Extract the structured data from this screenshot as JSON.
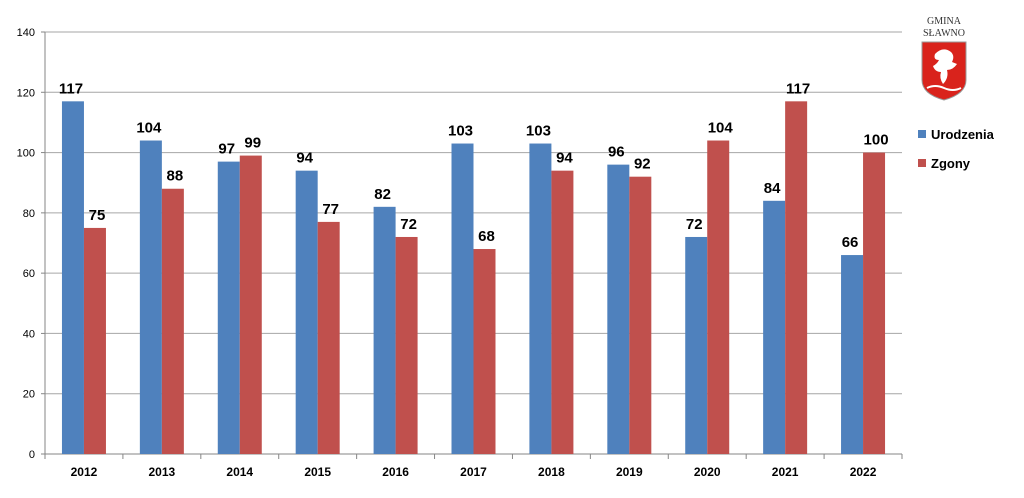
{
  "chart_data": {
    "type": "bar",
    "categories": [
      "2012",
      "2013",
      "2014",
      "2015",
      "2016",
      "2017",
      "2018",
      "2019",
      "2020",
      "2021",
      "2022"
    ],
    "series": [
      {
        "name": "Urodzenia",
        "color": "#4F81BD",
        "values": [
          117,
          104,
          97,
          94,
          82,
          103,
          103,
          96,
          72,
          84,
          66
        ]
      },
      {
        "name": "Zgony",
        "color": "#C0504D",
        "values": [
          75,
          88,
          99,
          77,
          72,
          68,
          94,
          92,
          104,
          117,
          100
        ]
      }
    ],
    "ylim": [
      0,
      140
    ],
    "yticks": [
      0,
      20,
      40,
      60,
      80,
      100,
      120,
      140
    ],
    "grid": true,
    "legend": "right",
    "data_labels": true
  },
  "logo": {
    "line1": "GMINA",
    "line2": "SŁAWNO",
    "shield_color": "#D9231C"
  }
}
